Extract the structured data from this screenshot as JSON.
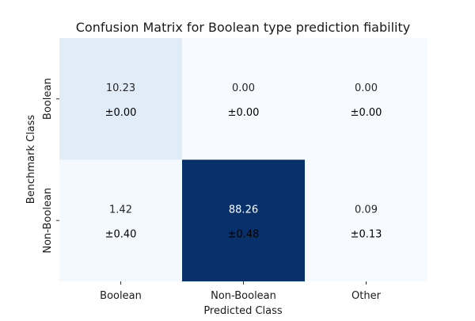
{
  "chart_data": {
    "type": "heatmap",
    "title": "Confusion Matrix for Boolean type prediction fiability",
    "xlabel": "Predicted Class",
    "ylabel": "Benchmark Class",
    "x_categories": [
      "Boolean",
      "Non-Boolean",
      "Other"
    ],
    "y_categories": [
      "Boolean",
      "Non-Boolean"
    ],
    "values": [
      [
        10.23,
        0.0,
        0.0
      ],
      [
        1.42,
        88.26,
        0.09
      ]
    ],
    "std": [
      [
        0.0,
        0.0,
        0.0
      ],
      [
        0.4,
        0.48,
        0.13
      ]
    ],
    "value_labels": [
      [
        "10.23",
        "0.00",
        "0.00"
      ],
      [
        "1.42",
        "88.26",
        "0.09"
      ]
    ],
    "std_labels": [
      [
        "±0.00",
        "±0.00",
        "±0.00"
      ],
      [
        "±0.40",
        "±0.48",
        "±0.13"
      ]
    ],
    "colormap": "Blues",
    "colorbar": false
  }
}
